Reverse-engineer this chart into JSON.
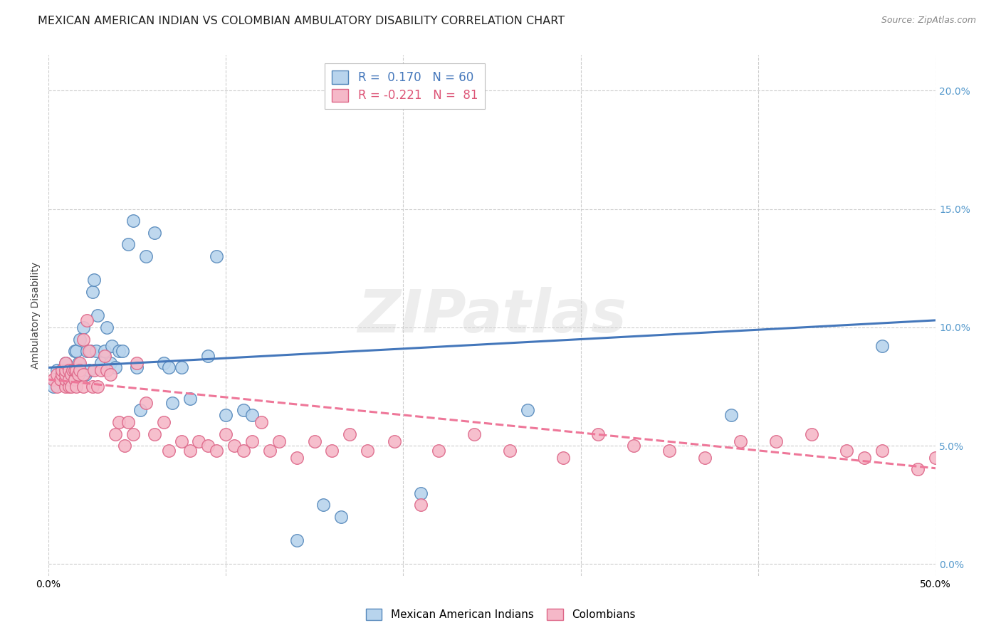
{
  "title": "MEXICAN AMERICAN INDIAN VS COLOMBIAN AMBULATORY DISABILITY CORRELATION CHART",
  "source": "Source: ZipAtlas.com",
  "ylabel": "Ambulatory Disability",
  "watermark": "ZIPatlas",
  "xlim": [
    0.0,
    0.5
  ],
  "ylim": [
    -0.005,
    0.215
  ],
  "xticks": [
    0.0,
    0.1,
    0.2,
    0.3,
    0.4,
    0.5
  ],
  "xticklabels": [
    "0.0%",
    "",
    "",
    "",
    "",
    "50.0%"
  ],
  "yticks": [
    0.0,
    0.05,
    0.1,
    0.15,
    0.2
  ],
  "yticklabels_right": [
    "0.0%",
    "5.0%",
    "10.0%",
    "15.0%",
    "20.0%"
  ],
  "series1_name": "Mexican American Indians",
  "series2_name": "Colombians",
  "series1_R": 0.17,
  "series1_N": 60,
  "series2_R": -0.221,
  "series2_N": 81,
  "series1_color": "#b8d4ed",
  "series2_color": "#f5b8c8",
  "series1_edge": "#5588bb",
  "series2_edge": "#dd6688",
  "line1_color": "#4477bb",
  "line2_color": "#ee7799",
  "background_color": "#ffffff",
  "grid_color": "#cccccc",
  "title_fontsize": 11.5,
  "label_fontsize": 10,
  "tick_fontsize": 10,
  "series1_x": [
    0.003,
    0.005,
    0.008,
    0.008,
    0.008,
    0.01,
    0.01,
    0.01,
    0.01,
    0.012,
    0.012,
    0.013,
    0.013,
    0.015,
    0.015,
    0.016,
    0.016,
    0.017,
    0.018,
    0.018,
    0.02,
    0.021,
    0.022,
    0.023,
    0.024,
    0.025,
    0.026,
    0.027,
    0.028,
    0.03,
    0.032,
    0.033,
    0.035,
    0.036,
    0.038,
    0.04,
    0.042,
    0.045,
    0.048,
    0.05,
    0.052,
    0.055,
    0.06,
    0.065,
    0.068,
    0.07,
    0.075,
    0.08,
    0.09,
    0.095,
    0.1,
    0.11,
    0.115,
    0.14,
    0.155,
    0.165,
    0.21,
    0.27,
    0.385,
    0.47
  ],
  "series1_y": [
    0.075,
    0.082,
    0.078,
    0.082,
    0.08,
    0.078,
    0.08,
    0.082,
    0.085,
    0.08,
    0.082,
    0.078,
    0.082,
    0.082,
    0.09,
    0.08,
    0.09,
    0.085,
    0.082,
    0.095,
    0.1,
    0.08,
    0.09,
    0.082,
    0.09,
    0.115,
    0.12,
    0.09,
    0.105,
    0.085,
    0.09,
    0.1,
    0.085,
    0.092,
    0.083,
    0.09,
    0.09,
    0.135,
    0.145,
    0.083,
    0.065,
    0.13,
    0.14,
    0.085,
    0.083,
    0.068,
    0.083,
    0.07,
    0.088,
    0.13,
    0.063,
    0.065,
    0.063,
    0.01,
    0.025,
    0.02,
    0.03,
    0.065,
    0.063,
    0.092
  ],
  "series2_x": [
    0.003,
    0.005,
    0.005,
    0.007,
    0.008,
    0.008,
    0.01,
    0.01,
    0.01,
    0.01,
    0.01,
    0.012,
    0.012,
    0.012,
    0.013,
    0.013,
    0.014,
    0.015,
    0.015,
    0.016,
    0.016,
    0.017,
    0.018,
    0.018,
    0.02,
    0.02,
    0.02,
    0.022,
    0.023,
    0.025,
    0.026,
    0.028,
    0.03,
    0.032,
    0.033,
    0.035,
    0.038,
    0.04,
    0.043,
    0.045,
    0.048,
    0.05,
    0.055,
    0.06,
    0.065,
    0.068,
    0.075,
    0.08,
    0.085,
    0.09,
    0.095,
    0.1,
    0.105,
    0.11,
    0.115,
    0.12,
    0.125,
    0.13,
    0.14,
    0.15,
    0.16,
    0.17,
    0.18,
    0.195,
    0.21,
    0.22,
    0.24,
    0.26,
    0.29,
    0.31,
    0.33,
    0.35,
    0.37,
    0.39,
    0.41,
    0.43,
    0.45,
    0.46,
    0.47,
    0.49,
    0.5
  ],
  "series2_y": [
    0.078,
    0.075,
    0.08,
    0.078,
    0.08,
    0.082,
    0.075,
    0.078,
    0.08,
    0.082,
    0.085,
    0.075,
    0.078,
    0.082,
    0.075,
    0.08,
    0.082,
    0.078,
    0.082,
    0.075,
    0.082,
    0.08,
    0.085,
    0.082,
    0.075,
    0.08,
    0.095,
    0.103,
    0.09,
    0.075,
    0.082,
    0.075,
    0.082,
    0.088,
    0.082,
    0.08,
    0.055,
    0.06,
    0.05,
    0.06,
    0.055,
    0.085,
    0.068,
    0.055,
    0.06,
    0.048,
    0.052,
    0.048,
    0.052,
    0.05,
    0.048,
    0.055,
    0.05,
    0.048,
    0.052,
    0.06,
    0.048,
    0.052,
    0.045,
    0.052,
    0.048,
    0.055,
    0.048,
    0.052,
    0.025,
    0.048,
    0.055,
    0.048,
    0.045,
    0.055,
    0.05,
    0.048,
    0.045,
    0.052,
    0.052,
    0.055,
    0.048,
    0.045,
    0.048,
    0.04,
    0.045
  ]
}
